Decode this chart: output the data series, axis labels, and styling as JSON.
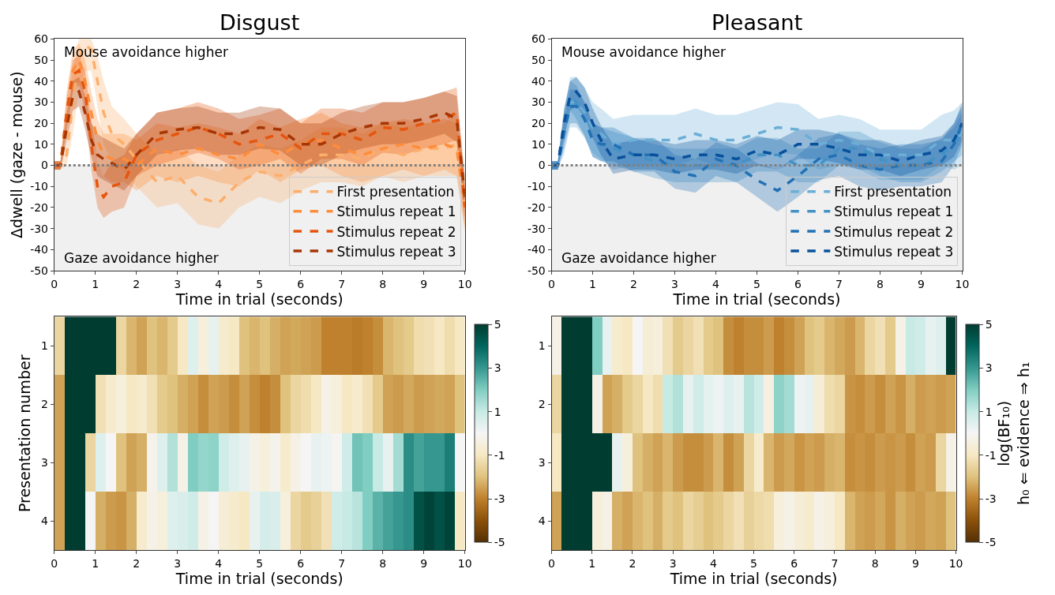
{
  "chart_data": [
    {
      "type": "line",
      "title": "Disgust",
      "xlabel": "Time in trial (seconds)",
      "ylabel": "Δdwell (gaze - mouse)",
      "line_style": "dashed",
      "legend": "bottom right",
      "xlim": [
        0,
        10
      ],
      "xticks": [
        0,
        1,
        2,
        3,
        4,
        5,
        6,
        7,
        8,
        9,
        10
      ],
      "ylim": [
        -50,
        60
      ],
      "yticks": [
        -50,
        -40,
        -30,
        -20,
        -10,
        0,
        10,
        20,
        30,
        40,
        50,
        60
      ],
      "annotations": [
        "Mouse avoidance higher",
        "Gaze avoidance higher"
      ],
      "ref_lines": [
        {
          "axis": "y",
          "value": 0,
          "color": "#808080",
          "line_style": "dotted"
        }
      ],
      "bands": [
        {
          "axis": "y",
          "from": -50,
          "to": 0,
          "color": "#f0f0f0"
        }
      ],
      "x": [
        0,
        0.15,
        0.3,
        0.45,
        0.6,
        0.75,
        0.9,
        1.05,
        1.2,
        1.4,
        1.7,
        2,
        2.5,
        3,
        3.5,
        4,
        4.5,
        5,
        5.5,
        6,
        6.5,
        7,
        7.5,
        8,
        8.5,
        9,
        9.5,
        9.8,
        10
      ],
      "series": [
        {
          "name": "First presentation",
          "color": "#fdae6b",
          "values": [
            0,
            0,
            5,
            30,
            50,
            57,
            55,
            40,
            25,
            15,
            10,
            3,
            -8,
            -5,
            -15,
            -18,
            -8,
            -3,
            -5,
            0,
            5,
            5,
            3,
            8,
            5,
            8,
            8,
            10,
            -20
          ],
          "upper": [
            2,
            2,
            10,
            45,
            60,
            60,
            60,
            52,
            40,
            28,
            22,
            15,
            5,
            8,
            0,
            -3,
            5,
            10,
            8,
            12,
            18,
            18,
            15,
            20,
            18,
            20,
            20,
            25,
            -8
          ],
          "lower": [
            -2,
            -2,
            0,
            15,
            35,
            45,
            45,
            28,
            10,
            2,
            -3,
            -10,
            -20,
            -18,
            -28,
            -30,
            -20,
            -15,
            -18,
            -12,
            -8,
            -8,
            -10,
            -5,
            -8,
            -5,
            -5,
            -5,
            -32
          ]
        },
        {
          "name": "Stimulus repeat 1",
          "color": "#fd8d3c",
          "values": [
            0,
            0,
            25,
            45,
            50,
            40,
            25,
            12,
            5,
            3,
            3,
            0,
            8,
            5,
            8,
            5,
            3,
            10,
            5,
            10,
            12,
            8,
            5,
            8,
            10,
            8,
            10,
            8,
            -20
          ],
          "upper": [
            2,
            2,
            35,
            55,
            58,
            50,
            35,
            22,
            15,
            15,
            15,
            12,
            20,
            18,
            20,
            18,
            15,
            22,
            18,
            22,
            25,
            20,
            18,
            20,
            22,
            20,
            22,
            20,
            -10
          ],
          "lower": [
            -2,
            -2,
            15,
            35,
            40,
            30,
            15,
            2,
            -5,
            -8,
            -8,
            -12,
            -5,
            -8,
            -5,
            -8,
            -10,
            -2,
            -8,
            -2,
            0,
            -5,
            -8,
            -5,
            -2,
            -5,
            -2,
            -5,
            -30
          ]
        },
        {
          "name": "Stimulus repeat 2",
          "color": "#e6550d",
          "values": [
            0,
            0,
            25,
            43,
            45,
            35,
            10,
            -10,
            -15,
            -10,
            -8,
            5,
            12,
            15,
            18,
            15,
            10,
            12,
            15,
            8,
            15,
            15,
            12,
            18,
            17,
            20,
            22,
            25,
            -20
          ],
          "upper": [
            2,
            2,
            32,
            50,
            52,
            45,
            22,
            2,
            -5,
            2,
            5,
            15,
            25,
            27,
            30,
            27,
            22,
            24,
            27,
            20,
            27,
            27,
            25,
            30,
            30,
            32,
            35,
            37,
            -10
          ],
          "lower": [
            -2,
            -2,
            18,
            35,
            38,
            25,
            -2,
            -20,
            -25,
            -22,
            -20,
            -5,
            0,
            3,
            6,
            3,
            -2,
            0,
            3,
            -4,
            3,
            3,
            0,
            6,
            5,
            8,
            10,
            12,
            -30
          ]
        },
        {
          "name": "Stimulus repeat 3",
          "color": "#a63603",
          "values": [
            0,
            0,
            18,
            33,
            35,
            25,
            12,
            5,
            3,
            1,
            -2,
            5,
            15,
            17,
            18,
            15,
            15,
            18,
            17,
            10,
            10,
            15,
            18,
            20,
            20,
            22,
            25,
            22,
            -15
          ],
          "upper": [
            2,
            2,
            25,
            40,
            42,
            33,
            20,
            15,
            13,
            11,
            8,
            15,
            25,
            27,
            28,
            25,
            25,
            28,
            27,
            20,
            20,
            25,
            28,
            30,
            30,
            32,
            35,
            33,
            -5
          ],
          "lower": [
            -2,
            -2,
            11,
            26,
            28,
            17,
            4,
            -5,
            -7,
            -9,
            -12,
            -5,
            5,
            7,
            8,
            5,
            5,
            8,
            7,
            0,
            0,
            5,
            8,
            10,
            10,
            12,
            15,
            11,
            -25
          ]
        }
      ]
    },
    {
      "type": "line",
      "title": "Pleasant",
      "xlabel": "Time in trial (seconds)",
      "line_style": "dashed",
      "legend": "bottom right",
      "xlim": [
        0,
        10
      ],
      "xticks": [
        0,
        1,
        2,
        3,
        4,
        5,
        6,
        7,
        8,
        9,
        10
      ],
      "ylim": [
        -50,
        60
      ],
      "yticks": [
        -50,
        -40,
        -30,
        -20,
        -10,
        0,
        10,
        20,
        30,
        40,
        50,
        60
      ],
      "annotations": [
        "Mouse avoidance higher",
        "Gaze avoidance higher"
      ],
      "ref_lines": [
        {
          "axis": "y",
          "value": 0,
          "color": "#808080",
          "line_style": "dotted"
        }
      ],
      "bands": [
        {
          "axis": "y",
          "from": -50,
          "to": 0,
          "color": "#f0f0f0"
        }
      ],
      "x": [
        0,
        0.15,
        0.3,
        0.45,
        0.6,
        0.8,
        1,
        1.2,
        1.5,
        2,
        2.5,
        3,
        3.5,
        4,
        4.5,
        5,
        5.5,
        6,
        6.5,
        7,
        7.5,
        8,
        8.5,
        9,
        9.5,
        9.8,
        10
      ],
      "series": [
        {
          "name": "First presentation",
          "color": "#6baed6",
          "values": [
            0,
            0,
            15,
            30,
            30,
            25,
            18,
            15,
            10,
            12,
            12,
            12,
            15,
            12,
            12,
            15,
            18,
            17,
            10,
            12,
            10,
            5,
            5,
            5,
            12,
            12,
            15
          ],
          "upper": [
            2,
            2,
            25,
            42,
            42,
            37,
            30,
            27,
            22,
            24,
            24,
            24,
            27,
            24,
            24,
            27,
            30,
            29,
            22,
            24,
            22,
            17,
            17,
            17,
            24,
            26,
            30
          ],
          "lower": [
            -2,
            -2,
            5,
            18,
            18,
            13,
            6,
            3,
            -2,
            0,
            0,
            0,
            3,
            0,
            0,
            3,
            6,
            5,
            -2,
            0,
            -2,
            -7,
            -7,
            -7,
            0,
            -2,
            0
          ]
        },
        {
          "name": "Stimulus repeat 1",
          "color": "#4292c6",
          "values": [
            0,
            0,
            18,
            33,
            30,
            22,
            12,
            10,
            8,
            5,
            2,
            0,
            0,
            0,
            0,
            5,
            5,
            0,
            0,
            8,
            8,
            3,
            0,
            0,
            5,
            10,
            15
          ],
          "upper": [
            2,
            2,
            25,
            40,
            38,
            30,
            20,
            18,
            16,
            13,
            10,
            8,
            8,
            8,
            8,
            13,
            13,
            8,
            8,
            16,
            16,
            11,
            8,
            8,
            13,
            18,
            25
          ],
          "lower": [
            -2,
            -2,
            11,
            26,
            22,
            14,
            4,
            2,
            0,
            -3,
            -6,
            -8,
            -8,
            -8,
            -8,
            -3,
            -3,
            -8,
            -8,
            0,
            0,
            -5,
            -8,
            -8,
            -3,
            2,
            5
          ]
        },
        {
          "name": "Stimulus repeat 2",
          "color": "#2171b5",
          "values": [
            0,
            0,
            15,
            28,
            28,
            22,
            12,
            10,
            10,
            5,
            5,
            -3,
            -5,
            3,
            0,
            -7,
            -12,
            -5,
            3,
            5,
            0,
            -2,
            0,
            0,
            2,
            10,
            20
          ],
          "upper": [
            2,
            2,
            22,
            36,
            36,
            30,
            20,
            18,
            18,
            13,
            13,
            5,
            3,
            11,
            8,
            1,
            -2,
            5,
            13,
            15,
            10,
            8,
            10,
            10,
            12,
            20,
            30
          ],
          "lower": [
            -2,
            -2,
            8,
            20,
            20,
            14,
            4,
            2,
            2,
            -3,
            -3,
            -11,
            -13,
            -5,
            -8,
            -15,
            -22,
            -15,
            -7,
            -5,
            -10,
            -12,
            -10,
            -10,
            -8,
            0,
            10
          ]
        },
        {
          "name": "Stimulus repeat 3",
          "color": "#08519c",
          "values": [
            0,
            0,
            20,
            33,
            35,
            30,
            20,
            12,
            3,
            5,
            5,
            3,
            5,
            5,
            3,
            7,
            5,
            10,
            10,
            8,
            5,
            5,
            2,
            5,
            7,
            12,
            20
          ],
          "upper": [
            2,
            2,
            27,
            40,
            42,
            37,
            27,
            19,
            10,
            12,
            12,
            10,
            12,
            12,
            10,
            14,
            12,
            17,
            17,
            15,
            12,
            12,
            9,
            12,
            14,
            20,
            28
          ],
          "lower": [
            -2,
            -2,
            13,
            26,
            28,
            23,
            13,
            5,
            -4,
            -2,
            -2,
            -4,
            -2,
            -2,
            -4,
            0,
            -2,
            3,
            3,
            1,
            -2,
            -2,
            -5,
            -2,
            0,
            4,
            12
          ]
        }
      ]
    },
    {
      "type": "heatmap",
      "xlabel": "Time in trial (seconds)",
      "ylabel": "Presentation number",
      "xlim": [
        0,
        10
      ],
      "xticks": [
        0,
        1,
        2,
        3,
        4,
        5,
        6,
        7,
        8,
        9,
        10
      ],
      "clim": [
        -5,
        5
      ],
      "cticks": [
        -5,
        -3,
        -1,
        1,
        3,
        5
      ],
      "y_categories": [
        "1",
        "2",
        "3",
        "4"
      ],
      "x": [
        0.125,
        0.375,
        0.625,
        0.875,
        1.125,
        1.375,
        1.625,
        1.875,
        2.125,
        2.375,
        2.625,
        2.875,
        3.125,
        3.375,
        3.625,
        3.875,
        4.125,
        4.375,
        4.625,
        4.875,
        5.125,
        5.375,
        5.625,
        5.875,
        6.125,
        6.375,
        6.625,
        6.875,
        7.125,
        7.375,
        7.625,
        7.875,
        8.125,
        8.375,
        8.625,
        8.875,
        9.125,
        9.375,
        9.625,
        9.875
      ],
      "cells": [
        [
          -1.5,
          5,
          5,
          5,
          5,
          5,
          -1.5,
          -2.2,
          -2.5,
          -2,
          -2.2,
          -1.8,
          -1,
          0.5,
          -0.5,
          0.3,
          -0.8,
          -1,
          -2,
          -2.2,
          -2,
          -2.3,
          -2.5,
          -2.4,
          -2.5,
          -2.6,
          -3,
          -3,
          -3,
          -3.1,
          -3,
          -2.8,
          -2.2,
          -2,
          -1.8,
          -1.3,
          -1.2,
          -1,
          -1.3,
          -1
        ],
        [
          -2.5,
          5,
          5,
          5,
          -1.2,
          -0.8,
          -0.5,
          -1,
          -0.8,
          -1.2,
          -1.8,
          -2,
          -2.3,
          -2.5,
          -2.8,
          -2.5,
          -2.6,
          -2.8,
          -2.5,
          -2.8,
          -3,
          -2.8,
          -2,
          -1.5,
          -1.3,
          -1,
          -0.3,
          -0.5,
          -1,
          -0.8,
          -1.2,
          -1.8,
          -2.5,
          -2.6,
          -2.4,
          -2.6,
          -2.5,
          -2.4,
          -2.5,
          -2
        ],
        [
          -2.5,
          5,
          5,
          -1.5,
          0.5,
          0,
          -2,
          -2.5,
          -2.3,
          -0.2,
          0.5,
          1.3,
          -0.3,
          2,
          1.7,
          1.8,
          0.8,
          0.5,
          0.3,
          -0.3,
          -0.5,
          -0.2,
          -0.8,
          -0.3,
          0,
          0.3,
          0.2,
          -0.1,
          0.8,
          2.2,
          2,
          1,
          0.3,
          1.5,
          3.2,
          2.8,
          3,
          3,
          3.5,
          0
        ],
        [
          -2.5,
          5,
          5,
          0,
          -2.3,
          -2.6,
          -2.7,
          -2.3,
          -0.8,
          -0.3,
          -0.5,
          0.5,
          0.6,
          0.8,
          -0.3,
          0,
          -0.6,
          -0.8,
          -1,
          0.3,
          0.7,
          0.6,
          -0.5,
          -1.5,
          -1.8,
          -1.6,
          -1.2,
          0.8,
          1,
          1.2,
          2,
          2.5,
          2.8,
          3,
          3.2,
          4.5,
          4.8,
          4.5,
          4.8,
          -1
        ]
      ]
    },
    {
      "type": "heatmap",
      "xlabel": "Time in trial (seconds)",
      "xlim": [
        0,
        10
      ],
      "xticks": [
        0,
        1,
        2,
        3,
        4,
        5,
        6,
        7,
        8,
        9,
        10
      ],
      "clim": [
        -5,
        5
      ],
      "cticks": [
        -5,
        -3,
        -1,
        1,
        3,
        5
      ],
      "clabel": "log(BF₁₀)\nh₀ ⇐ evidence ⇒ h₁",
      "y_categories": [
        "1",
        "2",
        "3",
        "4"
      ],
      "x": [
        0.125,
        0.375,
        0.625,
        0.875,
        1.125,
        1.375,
        1.625,
        1.875,
        2.125,
        2.375,
        2.625,
        2.875,
        3.125,
        3.375,
        3.625,
        3.875,
        4.125,
        4.375,
        4.625,
        4.875,
        5.125,
        5.375,
        5.625,
        5.875,
        6.125,
        6.375,
        6.625,
        6.875,
        7.125,
        7.375,
        7.625,
        7.875,
        8.125,
        8.375,
        8.625,
        8.875,
        9.125,
        9.375,
        9.625,
        9.875
      ],
      "cells": [
        [
          -0.3,
          5,
          5,
          5,
          2,
          0.3,
          -0.8,
          -1,
          0,
          -0.6,
          -0.5,
          -1.2,
          -1.8,
          -1.5,
          -1.2,
          -1.8,
          -2,
          -2.8,
          -3,
          -2.8,
          -2.8,
          -2.6,
          -3,
          -2.8,
          -2.5,
          -2,
          -1.8,
          -2.2,
          -2.4,
          -2.6,
          -2.2,
          -1.5,
          -1.2,
          -1.8,
          -0.3,
          1,
          0.8,
          0.3,
          0.5,
          5
        ],
        [
          -1.5,
          5,
          5,
          5,
          -0.3,
          -2.5,
          -2.3,
          -1.8,
          -1.5,
          -1,
          -1.3,
          1,
          1.3,
          0.3,
          0.8,
          0.4,
          0.2,
          0.5,
          0.3,
          1.2,
          0.8,
          -0.4,
          1.8,
          1.5,
          0.2,
          0.3,
          -0.6,
          -1.3,
          -1.5,
          -2.7,
          -2.8,
          -2.6,
          -2.8,
          -2.5,
          -2.7,
          -2.3,
          -2.6,
          -2.5,
          -2.6,
          -2.5
        ],
        [
          -1,
          5,
          5,
          5,
          5,
          5,
          0.3,
          -0.5,
          -2,
          -2.3,
          -2.5,
          -2.2,
          -2.6,
          -2.8,
          -2.8,
          -2.6,
          -2.2,
          -2.8,
          -2.5,
          -1.5,
          -0.8,
          -2.2,
          -2.6,
          -2.4,
          -2.7,
          -2.5,
          -2.6,
          -2.3,
          -2.2,
          -2.8,
          -2.7,
          -2.8,
          -2.6,
          -2.7,
          -2.6,
          -2.8,
          -2.5,
          -2.6,
          -1.5,
          -0.3
        ],
        [
          -2.5,
          5,
          5,
          5,
          -0.5,
          -0.3,
          -2.3,
          -2.5,
          -2.2,
          -2,
          -2.3,
          -1.8,
          -2,
          -1.5,
          -1.7,
          -2,
          -1.8,
          -1.5,
          -1.2,
          -1.6,
          -1.4,
          -1.3,
          -0.5,
          -0.3,
          -0.6,
          -0.8,
          -0.3,
          -0.5,
          -1,
          -2.2,
          -2.5,
          -2.6,
          -2.4,
          -2.7,
          -2.3,
          -2.5,
          -2.6,
          -2.4,
          -2.5,
          -2
        ]
      ]
    }
  ]
}
